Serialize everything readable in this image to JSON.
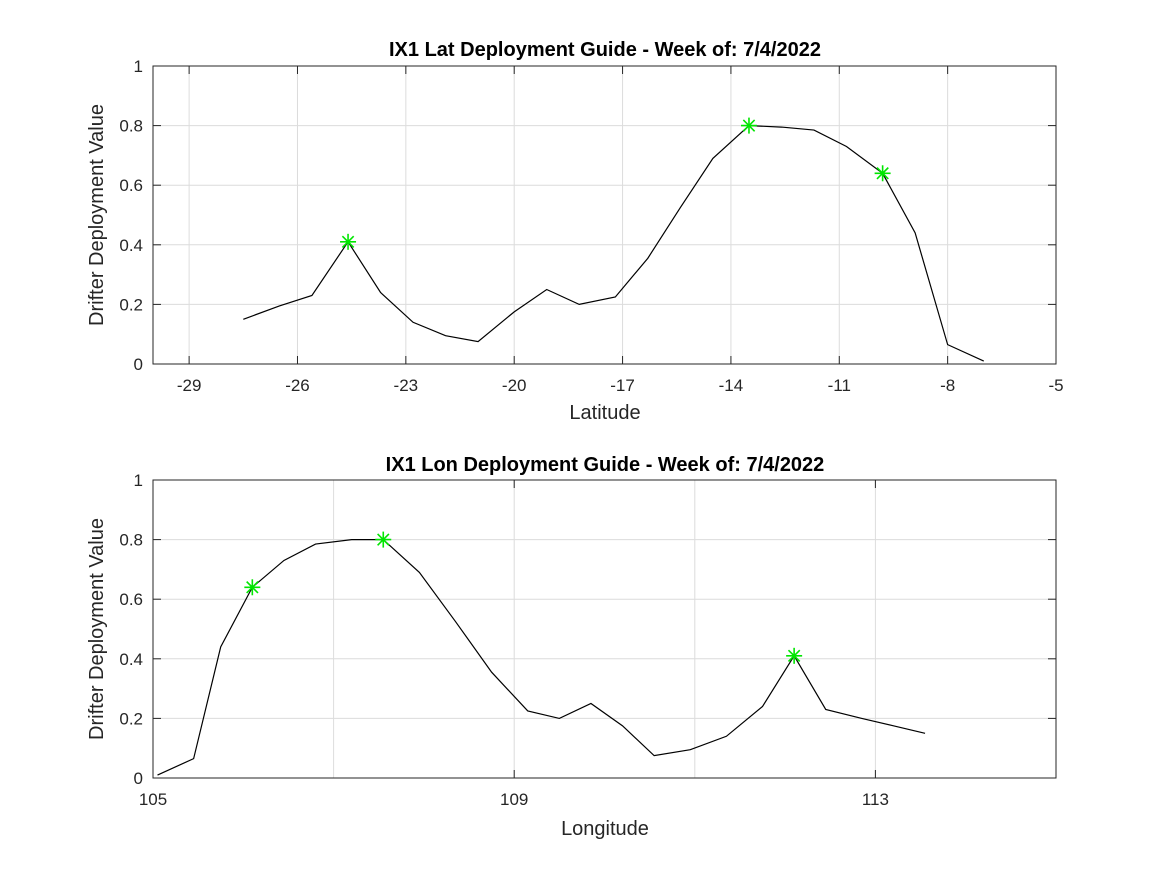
{
  "chart_data": [
    {
      "type": "line",
      "title": "IX1 Lat Deployment Guide - Week of: 7/4/2022",
      "xlabel": "Latitude",
      "ylabel": "Drifter Deployment Value",
      "xlim": [
        -30,
        -5
      ],
      "ylim": [
        0,
        1
      ],
      "xticks": [
        -29,
        -26,
        -23,
        -20,
        -17,
        -14,
        -11,
        -8,
        -5
      ],
      "xtick_labels": [
        "-29",
        "-26",
        "-23",
        "-20",
        "-17",
        "-14",
        "-11",
        "-8",
        "-5"
      ],
      "yticks": [
        0,
        0.2,
        0.4,
        0.6,
        0.8,
        1
      ],
      "ytick_labels": [
        "0",
        "0.2",
        "0.4",
        "0.6",
        "0.8",
        "1"
      ],
      "grid": true,
      "line_color": "#000000",
      "marker_color": "#00e600",
      "marker_symbol": "asterisk",
      "series": [
        {
          "x": [
            -27.5,
            -26.5,
            -25.6,
            -24.6,
            -23.7,
            -22.8,
            -21.9,
            -21.0,
            -20.0,
            -19.1,
            -18.2,
            -17.2,
            -16.3,
            -15.4,
            -14.5,
            -13.5,
            -12.6,
            -11.7,
            -10.8,
            -9.8,
            -8.9,
            -8.0,
            -7.0
          ],
          "y": [
            0.15,
            0.195,
            0.23,
            0.41,
            0.24,
            0.14,
            0.095,
            0.075,
            0.175,
            0.25,
            0.2,
            0.225,
            0.355,
            0.525,
            0.69,
            0.8,
            0.795,
            0.785,
            0.73,
            0.64,
            0.44,
            0.065,
            0.01
          ]
        }
      ],
      "highlighted_points": [
        {
          "x": -24.6,
          "y": 0.41
        },
        {
          "x": -13.5,
          "y": 0.8
        },
        {
          "x": -9.8,
          "y": 0.64
        }
      ]
    },
    {
      "type": "line",
      "title": "IX1 Lon Deployment Guide - Week of: 7/4/2022",
      "xlabel": "Longitude",
      "ylabel": "Drifter Deployment Value",
      "xlim": [
        105,
        115
      ],
      "ylim": [
        0,
        1
      ],
      "xticks": [
        105,
        109,
        113
      ],
      "xtick_labels": [
        "105",
        "109",
        "113"
      ],
      "extra_gridlines": [
        107,
        111
      ],
      "yticks": [
        0,
        0.2,
        0.4,
        0.6,
        0.8,
        1
      ],
      "ytick_labels": [
        "0",
        "0.2",
        "0.4",
        "0.6",
        "0.8",
        "1"
      ],
      "grid": true,
      "line_color": "#000000",
      "marker_color": "#00e600",
      "marker_symbol": "asterisk",
      "series": [
        {
          "x": [
            105.05,
            105.45,
            105.75,
            106.1,
            106.45,
            106.8,
            107.2,
            107.55,
            107.95,
            108.35,
            108.75,
            109.15,
            109.5,
            109.85,
            110.2,
            110.55,
            110.95,
            111.35,
            111.75,
            112.1,
            112.45,
            112.85,
            113.2,
            113.55
          ],
          "y": [
            0.01,
            0.065,
            0.44,
            0.64,
            0.73,
            0.785,
            0.8,
            0.8,
            0.69,
            0.525,
            0.355,
            0.225,
            0.2,
            0.25,
            0.175,
            0.075,
            0.095,
            0.14,
            0.24,
            0.41,
            0.23,
            0.2,
            0.175,
            0.15
          ]
        }
      ],
      "highlighted_points": [
        {
          "x": 106.1,
          "y": 0.64
        },
        {
          "x": 107.55,
          "y": 0.8
        },
        {
          "x": 112.1,
          "y": 0.41
        }
      ]
    }
  ]
}
